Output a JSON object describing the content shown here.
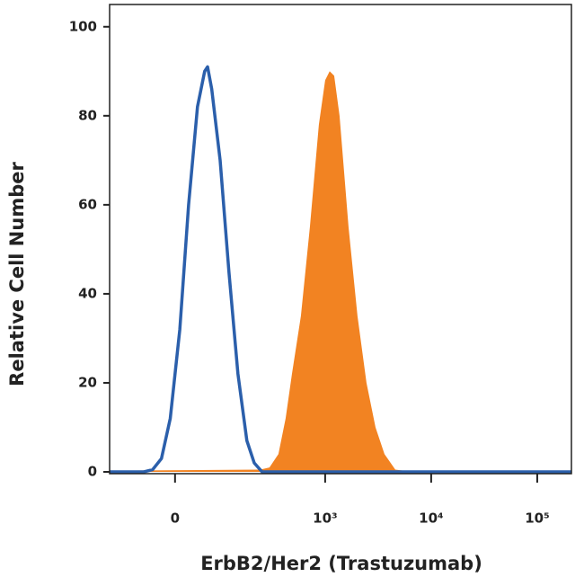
{
  "chart_data": {
    "type": "histogram-overlay",
    "x_label": "ErbB2/Her2 (Trastuzumab)",
    "y_label": "Relative Cell Number",
    "xscale": "biexponential",
    "xlim": [
      -150,
      210000
    ],
    "ylim": [
      -0.4,
      105
    ],
    "xticks": [
      0,
      {
        "value": 1000,
        "label": "10³"
      },
      {
        "value": 10000,
        "label": "10⁴"
      },
      {
        "value": 100000,
        "label": "10⁵"
      }
    ],
    "yticks": [
      0,
      20,
      40,
      60,
      80,
      100
    ],
    "series": [
      {
        "style": "line",
        "color": "#2b5fab",
        "x": [
          -150,
          -57,
          -39,
          -23,
          -8,
          8,
          23,
          39,
          53,
          59,
          68,
          88,
          112,
          141,
          175,
          208,
          249,
          210000
        ],
        "values": [
          0,
          0,
          0.5,
          3,
          12,
          32,
          60,
          82,
          90,
          91,
          86,
          70,
          45,
          22,
          7,
          2,
          0,
          0
        ]
      },
      {
        "style": "area",
        "color": "#f28322",
        "x": [
          -150,
          -77,
          239,
          294,
          359,
          421,
          484,
          589,
          717,
          872,
          1000,
          1103,
          1217,
          1368,
          1663,
          2020,
          2456,
          2988,
          3630,
          4590,
          6780,
          210000
        ],
        "values": [
          0,
          0.3,
          0.5,
          1,
          4,
          12,
          22,
          35,
          55,
          78,
          88,
          90,
          89,
          80,
          55,
          35,
          20,
          10,
          4,
          0.5,
          0,
          0
        ]
      }
    ]
  }
}
